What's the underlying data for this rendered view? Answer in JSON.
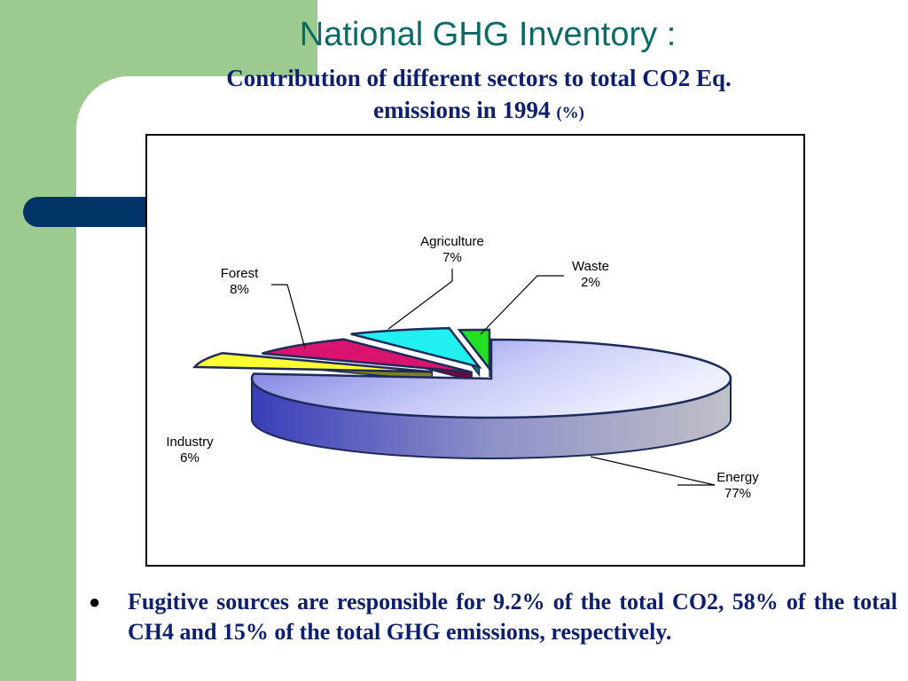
{
  "slide": {
    "title": "National GHG Inventory :",
    "subtitle_line1": "Contribution of different sectors to total CO2 Eq.",
    "subtitle_line2": "emissions in 1994",
    "subtitle_unit": "(%)",
    "bullet_text": "Fugitive sources are responsible for 9.2% of the total CO2, 58% of the total CH4 and 15% of the total GHG emissions, respectively."
  },
  "colors": {
    "green_panel": "#9dcb8f",
    "blue_bar": "#003366",
    "title": "#0a6b66",
    "subtitle": "#0d1f6e"
  },
  "chart_data": {
    "type": "pie",
    "style": "3d-exploded",
    "title": "",
    "slices": [
      {
        "name": "Energy",
        "value": 77,
        "label": "77%",
        "color": "#c8caf6"
      },
      {
        "name": "Industry",
        "value": 6,
        "label": "6%",
        "color": "#ffff33"
      },
      {
        "name": "Forest",
        "value": 8,
        "label": "8%",
        "color": "#d8146e"
      },
      {
        "name": "Agriculture",
        "value": 7,
        "label": "7%",
        "color": "#22f0f0"
      },
      {
        "name": "Waste",
        "value": 2,
        "label": "2%",
        "color": "#22e022"
      }
    ],
    "legend": "none"
  }
}
